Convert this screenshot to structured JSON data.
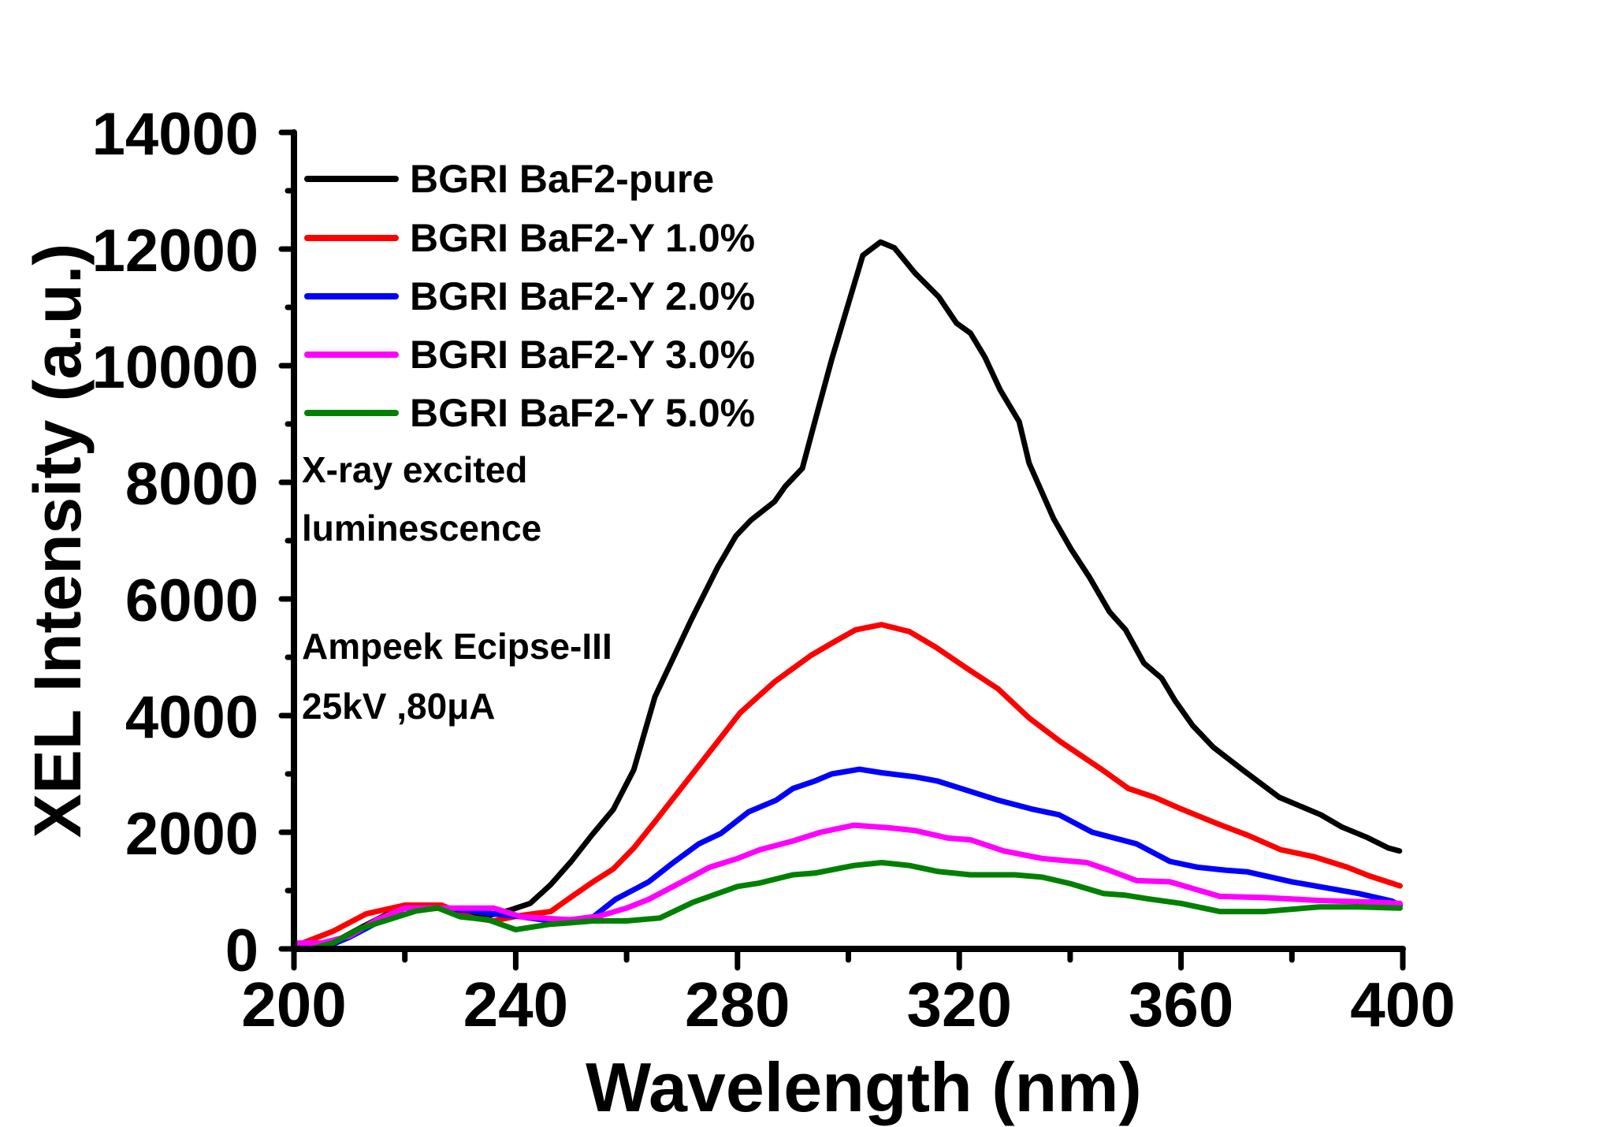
{
  "chart_data": {
    "type": "line",
    "title": "",
    "xlabel": "Wavelength (nm)",
    "ylabel": "XEL Intensity (a.u.)",
    "xlim": [
      200,
      400
    ],
    "ylim": [
      0,
      14000
    ],
    "xticks": [
      "200",
      "240",
      "280",
      "320",
      "360",
      "400"
    ],
    "yticks": [
      "0",
      "2000",
      "4000",
      "6000",
      "8000",
      "10000",
      "12000",
      "14000"
    ],
    "grid": false,
    "legend_position": "top-left",
    "annotations": [
      "X-ray excited",
      "luminescence",
      "Ampeek  Ecipse-III",
      " 25kV ,80μA"
    ],
    "series": [
      {
        "name": "BGRI BaF2-pure",
        "color": "#000000",
        "x": [
          201,
          205,
          212.6,
          220,
          225.7,
          229.5,
          235,
          238.8,
          242.6,
          246.3,
          250,
          253.8,
          257.6,
          261.3,
          265.1,
          271.7,
          276.4,
          279.7,
          282.4,
          286.7,
          288.6,
          291.7,
          294.2,
          297,
          299.8,
          302.6,
          305.8,
          308.3,
          312,
          316.3,
          319.5,
          322,
          324.6,
          327.4,
          330.8,
          332.6,
          337,
          340.2,
          343.5,
          347.1,
          350,
          353.3,
          356.5,
          358.9,
          362.1,
          365.8,
          371.1,
          377.7,
          385.2,
          389,
          393.6,
          397.4,
          399.4
        ],
        "y": [
          50,
          0,
          390,
          750,
          750,
          570,
          570,
          660,
          780,
          1100,
          1500,
          1960,
          2390,
          3070,
          4320,
          5650,
          6540,
          7080,
          7350,
          7670,
          7930,
          8240,
          9130,
          10110,
          11000,
          11890,
          12120,
          12020,
          11590,
          11180,
          10730,
          10560,
          10150,
          9580,
          9040,
          8330,
          7380,
          6850,
          6370,
          5780,
          5470,
          4900,
          4640,
          4260,
          3830,
          3460,
          3070,
          2600,
          2300,
          2090,
          1910,
          1730,
          1680
        ]
      },
      {
        "name": "BGRI BaF2-Y 1.0%",
        "color": "#ff0000",
        "x": [
          201,
          207,
          213,
          220,
          226.6,
          232.3,
          236,
          240.7,
          246.3,
          250,
          253.8,
          257.6,
          261.3,
          265.1,
          271.7,
          280.5,
          286.7,
          293.2,
          297,
          301.3,
          306,
          311,
          315.8,
          321.4,
          327,
          332.6,
          338.3,
          345.8,
          350.5,
          355.2,
          360,
          367,
          372,
          378,
          384,
          390,
          394,
          399.5
        ],
        "y": [
          80,
          300,
          600,
          750,
          750,
          530,
          480,
          570,
          640,
          890,
          1140,
          1370,
          1730,
          2180,
          2980,
          4050,
          4580,
          5030,
          5240,
          5470,
          5560,
          5440,
          5170,
          4810,
          4460,
          3960,
          3550,
          3070,
          2750,
          2600,
          2400,
          2130,
          1950,
          1700,
          1580,
          1400,
          1250,
          1080
        ]
      },
      {
        "name": "BGRI BaF2-Y 2.0%",
        "color": "#0000ff",
        "x": [
          201,
          205,
          210,
          215,
          220,
          226,
          232,
          236,
          241,
          247,
          250,
          254,
          258,
          262,
          264,
          268,
          273,
          277,
          282,
          287,
          290,
          294,
          297,
          302,
          306,
          312,
          316,
          322,
          327,
          333,
          338,
          344,
          348,
          352,
          358,
          363,
          368,
          372,
          380,
          386,
          392,
          398,
          399.5
        ],
        "y": [
          50,
          0,
          200,
          450,
          700,
          700,
          650,
          600,
          550,
          470,
          500,
          550,
          850,
          1050,
          1150,
          1450,
          1800,
          1980,
          2350,
          2550,
          2750,
          2880,
          3000,
          3080,
          3020,
          2950,
          2880,
          2700,
          2550,
          2400,
          2300,
          2000,
          1900,
          1800,
          1500,
          1400,
          1350,
          1320,
          1150,
          1050,
          950,
          820,
          750
        ]
      },
      {
        "name": "BGRI BaF2-Y 3.0%",
        "color": "#ff00ff",
        "x": [
          200.5,
          205,
          210,
          215,
          220,
          226,
          233,
          236,
          241,
          246,
          250,
          255,
          260,
          264,
          270,
          275,
          280,
          284,
          290,
          295,
          301,
          307,
          312,
          318,
          322,
          328,
          335,
          343,
          347,
          352,
          358,
          367,
          375,
          385,
          395,
          399.5
        ],
        "y": [
          100,
          100,
          220,
          500,
          700,
          700,
          700,
          700,
          550,
          520,
          500,
          560,
          700,
          850,
          1150,
          1400,
          1550,
          1700,
          1850,
          2000,
          2120,
          2080,
          2030,
          1900,
          1870,
          1680,
          1550,
          1480,
          1350,
          1170,
          1150,
          900,
          880,
          830,
          800,
          780
        ]
      },
      {
        "name": "BGRI BaF2-Y 5.0%",
        "color": "#008000",
        "x": [
          203,
          207,
          212,
          217,
          222,
          226,
          230,
          235,
          240,
          246,
          250,
          254,
          260,
          266,
          272,
          280,
          284,
          290,
          294,
          301,
          306,
          311,
          316,
          322,
          330,
          335,
          340,
          346,
          350,
          354,
          360,
          367,
          375,
          385,
          392,
          399.5
        ],
        "y": [
          0,
          100,
          350,
          500,
          650,
          700,
          550,
          500,
          330,
          420,
          450,
          480,
          480,
          530,
          800,
          1070,
          1130,
          1270,
          1300,
          1430,
          1480,
          1430,
          1330,
          1270,
          1270,
          1230,
          1120,
          950,
          920,
          860,
          780,
          640,
          640,
          720,
          720,
          700
        ]
      }
    ]
  }
}
